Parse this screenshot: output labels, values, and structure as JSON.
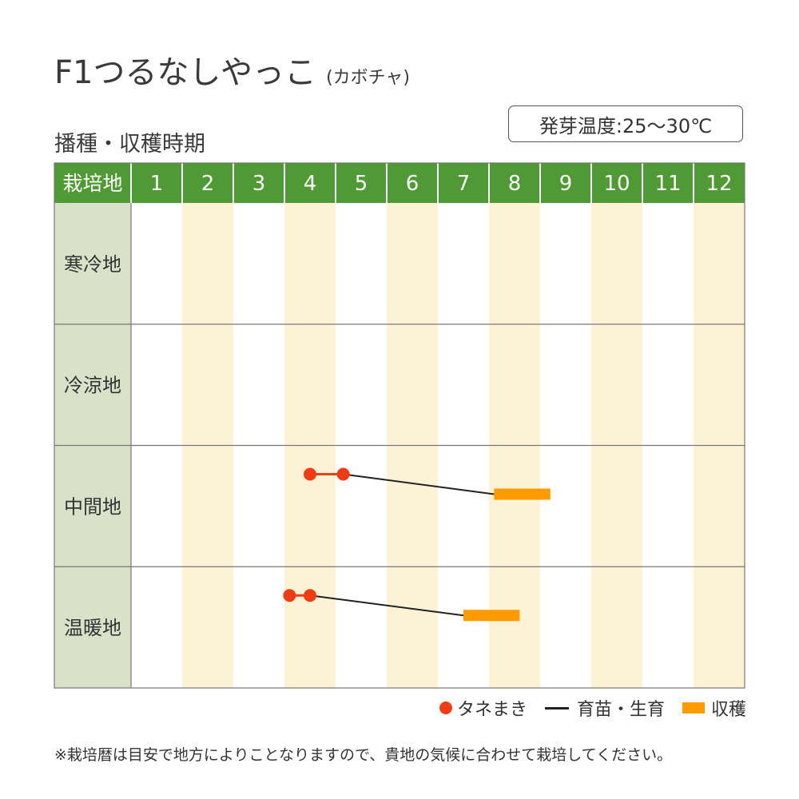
{
  "title": "F1つるなしやっこ",
  "title_sub": "(カボチャ)",
  "subtitle": "播種・収穫時期",
  "germination_temp": "発芽温度:25〜30℃",
  "note": "※栽培暦は目安で地方によりことなりますので、貴地の気候に合わせて栽培してください。",
  "colors": {
    "header_bg": "#4f9a35",
    "region_bg": "#d9e2c9",
    "stripe_bg": "#fcf3d7",
    "sow": "#f03c14",
    "nursery": "#222222",
    "harvest": "#ff9a00",
    "grid": "#777777"
  },
  "chart_data": {
    "type": "gantt",
    "header_label": "栽培地",
    "months": [
      "1",
      "2",
      "3",
      "4",
      "5",
      "6",
      "7",
      "8",
      "9",
      "10",
      "11",
      "12"
    ],
    "regions": [
      {
        "name": "寒冷地",
        "sowing": null,
        "nursery": null,
        "harvest": null
      },
      {
        "name": "冷涼地",
        "sowing": null,
        "nursery": null,
        "harvest": null
      },
      {
        "name": "中間地",
        "sowing": [
          4.5,
          5.15
        ],
        "nursery": [
          5.15,
          8.1
        ],
        "harvest": [
          8.1,
          9.2
        ]
      },
      {
        "name": "温暖地",
        "sowing": [
          4.1,
          4.5
        ],
        "nursery": [
          4.5,
          7.5
        ],
        "harvest": [
          7.5,
          8.6
        ]
      }
    ],
    "legend": [
      {
        "key": "sow",
        "label": "タネまき"
      },
      {
        "key": "nursery",
        "label": "育苗・生育"
      },
      {
        "key": "harvest",
        "label": "収穫"
      }
    ]
  }
}
